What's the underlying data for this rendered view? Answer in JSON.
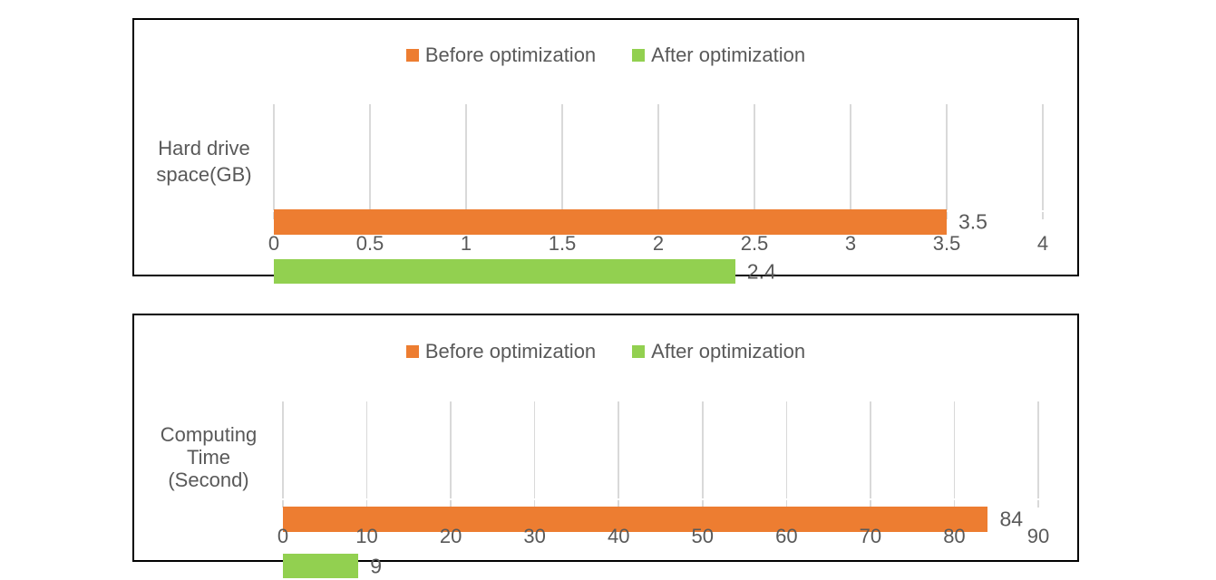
{
  "page": {
    "background": "#FFFFFF"
  },
  "colors": {
    "bar_orange": "#ED7D31",
    "bar_green": "#92D050",
    "text_gray": "#595959",
    "gridline": "#D9D9D9",
    "chart_border": "#000000"
  },
  "chart_data": [
    {
      "type": "bar",
      "orientation": "horizontal",
      "categories": [
        "Hard drive space(GB)"
      ],
      "category_label": "Hard drive\nspace(GB)",
      "series": [
        {
          "name": "Before optimization",
          "values": [
            3.5
          ],
          "data_labels": [
            "3.5"
          ],
          "color": "#ED7D31"
        },
        {
          "name": "After optimization",
          "values": [
            2.4
          ],
          "data_labels": [
            "2.4"
          ],
          "color": "#92D050"
        }
      ],
      "xlim": [
        0,
        4
      ],
      "x_tick_step": 0.5,
      "x_ticks": [
        "0",
        "0.5",
        "1",
        "1.5",
        "2",
        "2.5",
        "3",
        "3.5",
        "4"
      ],
      "legend": [
        "Before optimization",
        "After optimization"
      ],
      "legend_position": "top",
      "grid": true
    },
    {
      "type": "bar",
      "orientation": "horizontal",
      "categories": [
        "Computing Time (Second)"
      ],
      "category_label": "Computing\nTime\n(Second)",
      "series": [
        {
          "name": "Before optimization",
          "values": [
            84
          ],
          "data_labels": [
            "84"
          ],
          "color": "#ED7D31"
        },
        {
          "name": "After optimization",
          "values": [
            9
          ],
          "data_labels": [
            "9"
          ],
          "color": "#92D050"
        }
      ],
      "xlim": [
        0,
        90
      ],
      "x_tick_step": 10,
      "x_ticks": [
        "0",
        "10",
        "20",
        "30",
        "40",
        "50",
        "60",
        "70",
        "80",
        "90"
      ],
      "legend": [
        "Before optimization",
        "After optimization"
      ],
      "legend_position": "top",
      "grid": true
    }
  ]
}
